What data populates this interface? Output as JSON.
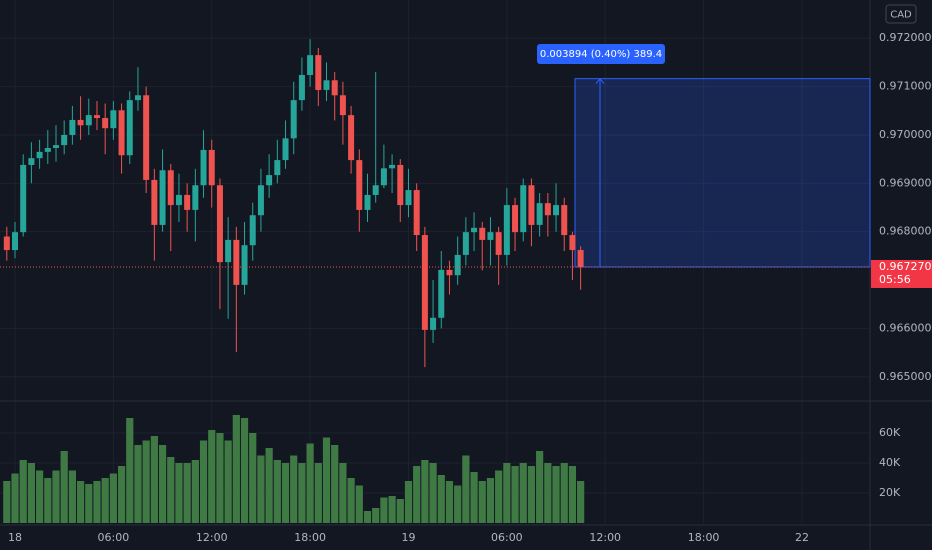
{
  "chart_data": {
    "type": "candlestick",
    "currency": "CAD",
    "up_color": "#26a69a",
    "down_color": "#ef5350",
    "grid": true,
    "xlim": [
      -0.83,
      105.3
    ],
    "xticks": [
      {
        "value": 1,
        "label": "18"
      },
      {
        "value": 13,
        "label": "06:00"
      },
      {
        "value": 25,
        "label": "12:00"
      },
      {
        "value": 37,
        "label": "18:00"
      },
      {
        "value": 49,
        "label": "19"
      },
      {
        "value": 61,
        "label": "06:00"
      },
      {
        "value": 73,
        "label": "12:00"
      },
      {
        "value": 85,
        "label": "18:00"
      },
      {
        "value": 97,
        "label": "22"
      }
    ],
    "ylim": [
      0.96452,
      0.97279
    ],
    "yticks": [
      {
        "value": 0.965,
        "label": "0.965000"
      },
      {
        "value": 0.966,
        "label": "0.966000"
      },
      {
        "value": 0.968,
        "label": "0.968000"
      },
      {
        "value": 0.969,
        "label": "0.969000"
      },
      {
        "value": 0.97,
        "label": "0.970000"
      },
      {
        "value": 0.971,
        "label": "0.971000"
      },
      {
        "value": 0.972,
        "label": "0.972000"
      }
    ],
    "open": [
      0.9679,
      0.96762,
      0.96799,
      0.96938,
      0.96952,
      0.96965,
      0.96973,
      0.96979,
      0.97,
      0.97031,
      0.9702,
      0.97041,
      0.97035,
      0.97014,
      0.97051,
      0.96958,
      0.97072,
      0.97082,
      0.96907,
      0.96814,
      0.96927,
      0.96855,
      0.96876,
      0.96845,
      0.96896,
      0.96969,
      0.96896,
      0.96737,
      0.96783,
      0.9669,
      0.96772,
      0.96834,
      0.96896,
      0.96917,
      0.96948,
      0.96993,
      0.97072,
      0.97124,
      0.97165,
      0.97093,
      0.97113,
      0.97082,
      0.97041,
      0.96948,
      0.96845,
      0.96876,
      0.96896,
      0.96931,
      0.96938,
      0.96855,
      0.96886,
      0.96793,
      0.96597,
      0.96622,
      0.96721,
      0.9671,
      0.96752,
      0.96799,
      0.96808,
      0.96783,
      0.96799,
      0.96752,
      0.96855,
      0.96799,
      0.96896,
      0.96814,
      0.96859,
      0.96834,
      0.96855,
      0.96793,
      0.96762
    ],
    "high": [
      0.9681,
      0.9682,
      0.9696,
      0.96985,
      0.9699,
      0.9701,
      0.9702,
      0.9703,
      0.9706,
      0.9708,
      0.97075,
      0.9707,
      0.97065,
      0.9707,
      0.97065,
      0.9709,
      0.9714,
      0.971,
      0.9693,
      0.9697,
      0.9694,
      0.9692,
      0.969,
      0.9693,
      0.9701,
      0.9699,
      0.9691,
      0.9683,
      0.9681,
      0.9682,
      0.9686,
      0.9693,
      0.9696,
      0.9699,
      0.9703,
      0.9711,
      0.9716,
      0.97198,
      0.9718,
      0.9715,
      0.9713,
      0.9711,
      0.9706,
      0.9697,
      0.9692,
      0.9713,
      0.9698,
      0.9696,
      0.9695,
      0.9693,
      0.969,
      0.9681,
      0.967,
      0.9676,
      0.9674,
      0.9679,
      0.9683,
      0.9684,
      0.9682,
      0.9683,
      0.9681,
      0.9689,
      0.9687,
      0.9691,
      0.9691,
      0.9688,
      0.9688,
      0.969,
      0.9687,
      0.968,
      0.9677
    ],
    "low": [
      0.9674,
      0.96745,
      0.9679,
      0.969,
      0.9693,
      0.9694,
      0.96945,
      0.9696,
      0.9698,
      0.9699,
      0.97,
      0.9701,
      0.9696,
      0.9699,
      0.9692,
      0.9694,
      0.9705,
      0.9688,
      0.9674,
      0.968,
      0.9676,
      0.9682,
      0.968,
      0.9678,
      0.9687,
      0.9685,
      0.9664,
      0.9662,
      0.96551,
      0.9667,
      0.9674,
      0.968,
      0.9687,
      0.969,
      0.9693,
      0.9696,
      0.9705,
      0.971,
      0.9706,
      0.9707,
      0.9703,
      0.9698,
      0.9692,
      0.968,
      0.9682,
      0.9686,
      0.9689,
      0.9688,
      0.9682,
      0.9683,
      0.9676,
      0.9652,
      0.9657,
      0.966,
      0.9667,
      0.9669,
      0.9673,
      0.9676,
      0.9672,
      0.9673,
      0.9669,
      0.9673,
      0.9676,
      0.9678,
      0.9677,
      0.9679,
      0.9679,
      0.968,
      0.9676,
      0.967,
      0.9668
    ],
    "close": [
      0.96762,
      0.96799,
      0.96938,
      0.96952,
      0.96965,
      0.96973,
      0.96979,
      0.97,
      0.97031,
      0.9702,
      0.97041,
      0.97035,
      0.97014,
      0.97051,
      0.96958,
      0.97072,
      0.97082,
      0.96907,
      0.96814,
      0.96927,
      0.96855,
      0.96876,
      0.96845,
      0.96896,
      0.96969,
      0.96896,
      0.96737,
      0.96783,
      0.9669,
      0.96772,
      0.96834,
      0.96896,
      0.96917,
      0.96948,
      0.96993,
      0.97072,
      0.97124,
      0.97165,
      0.97093,
      0.97113,
      0.97082,
      0.97041,
      0.96948,
      0.96845,
      0.96876,
      0.96896,
      0.96931,
      0.96938,
      0.96855,
      0.96886,
      0.96793,
      0.96597,
      0.96622,
      0.96721,
      0.9671,
      0.96752,
      0.96799,
      0.96808,
      0.96783,
      0.96799,
      0.96752,
      0.96855,
      0.96799,
      0.96896,
      0.96814,
      0.96859,
      0.96834,
      0.96855,
      0.96793,
      0.96762,
      0.96727
    ],
    "volume": {
      "color": "#3f7a45",
      "ylim": [
        0,
        80000
      ],
      "yticks": [
        {
          "value": 20000,
          "label": "20K"
        },
        {
          "value": 40000,
          "label": "40K"
        },
        {
          "value": 60000,
          "label": "60K"
        }
      ],
      "values": [
        28000,
        33000,
        42000,
        40000,
        35000,
        30000,
        35000,
        48000,
        35000,
        28000,
        26000,
        28000,
        30000,
        33000,
        38000,
        70000,
        52000,
        55000,
        58000,
        52000,
        44000,
        40000,
        40000,
        42000,
        55000,
        62000,
        60000,
        55000,
        72000,
        70000,
        60000,
        45000,
        50000,
        42000,
        40000,
        45000,
        40000,
        53000,
        40000,
        57000,
        52000,
        40000,
        30000,
        25000,
        8000,
        10000,
        17000,
        18000,
        16000,
        28000,
        38000,
        42000,
        40000,
        32000,
        28000,
        25000,
        45000,
        34000,
        28000,
        30000,
        35000,
        40000,
        38000,
        40000,
        38000,
        48000,
        40000,
        38000,
        40000,
        38000,
        28000
      ]
    },
    "last_price": {
      "value": 0.96727,
      "label": "0.967270"
    },
    "countdown": "05:56",
    "measure": {
      "from": 0.96727,
      "to": 0.971164,
      "label": "0.003894 (0.40%) 389.4"
    }
  }
}
